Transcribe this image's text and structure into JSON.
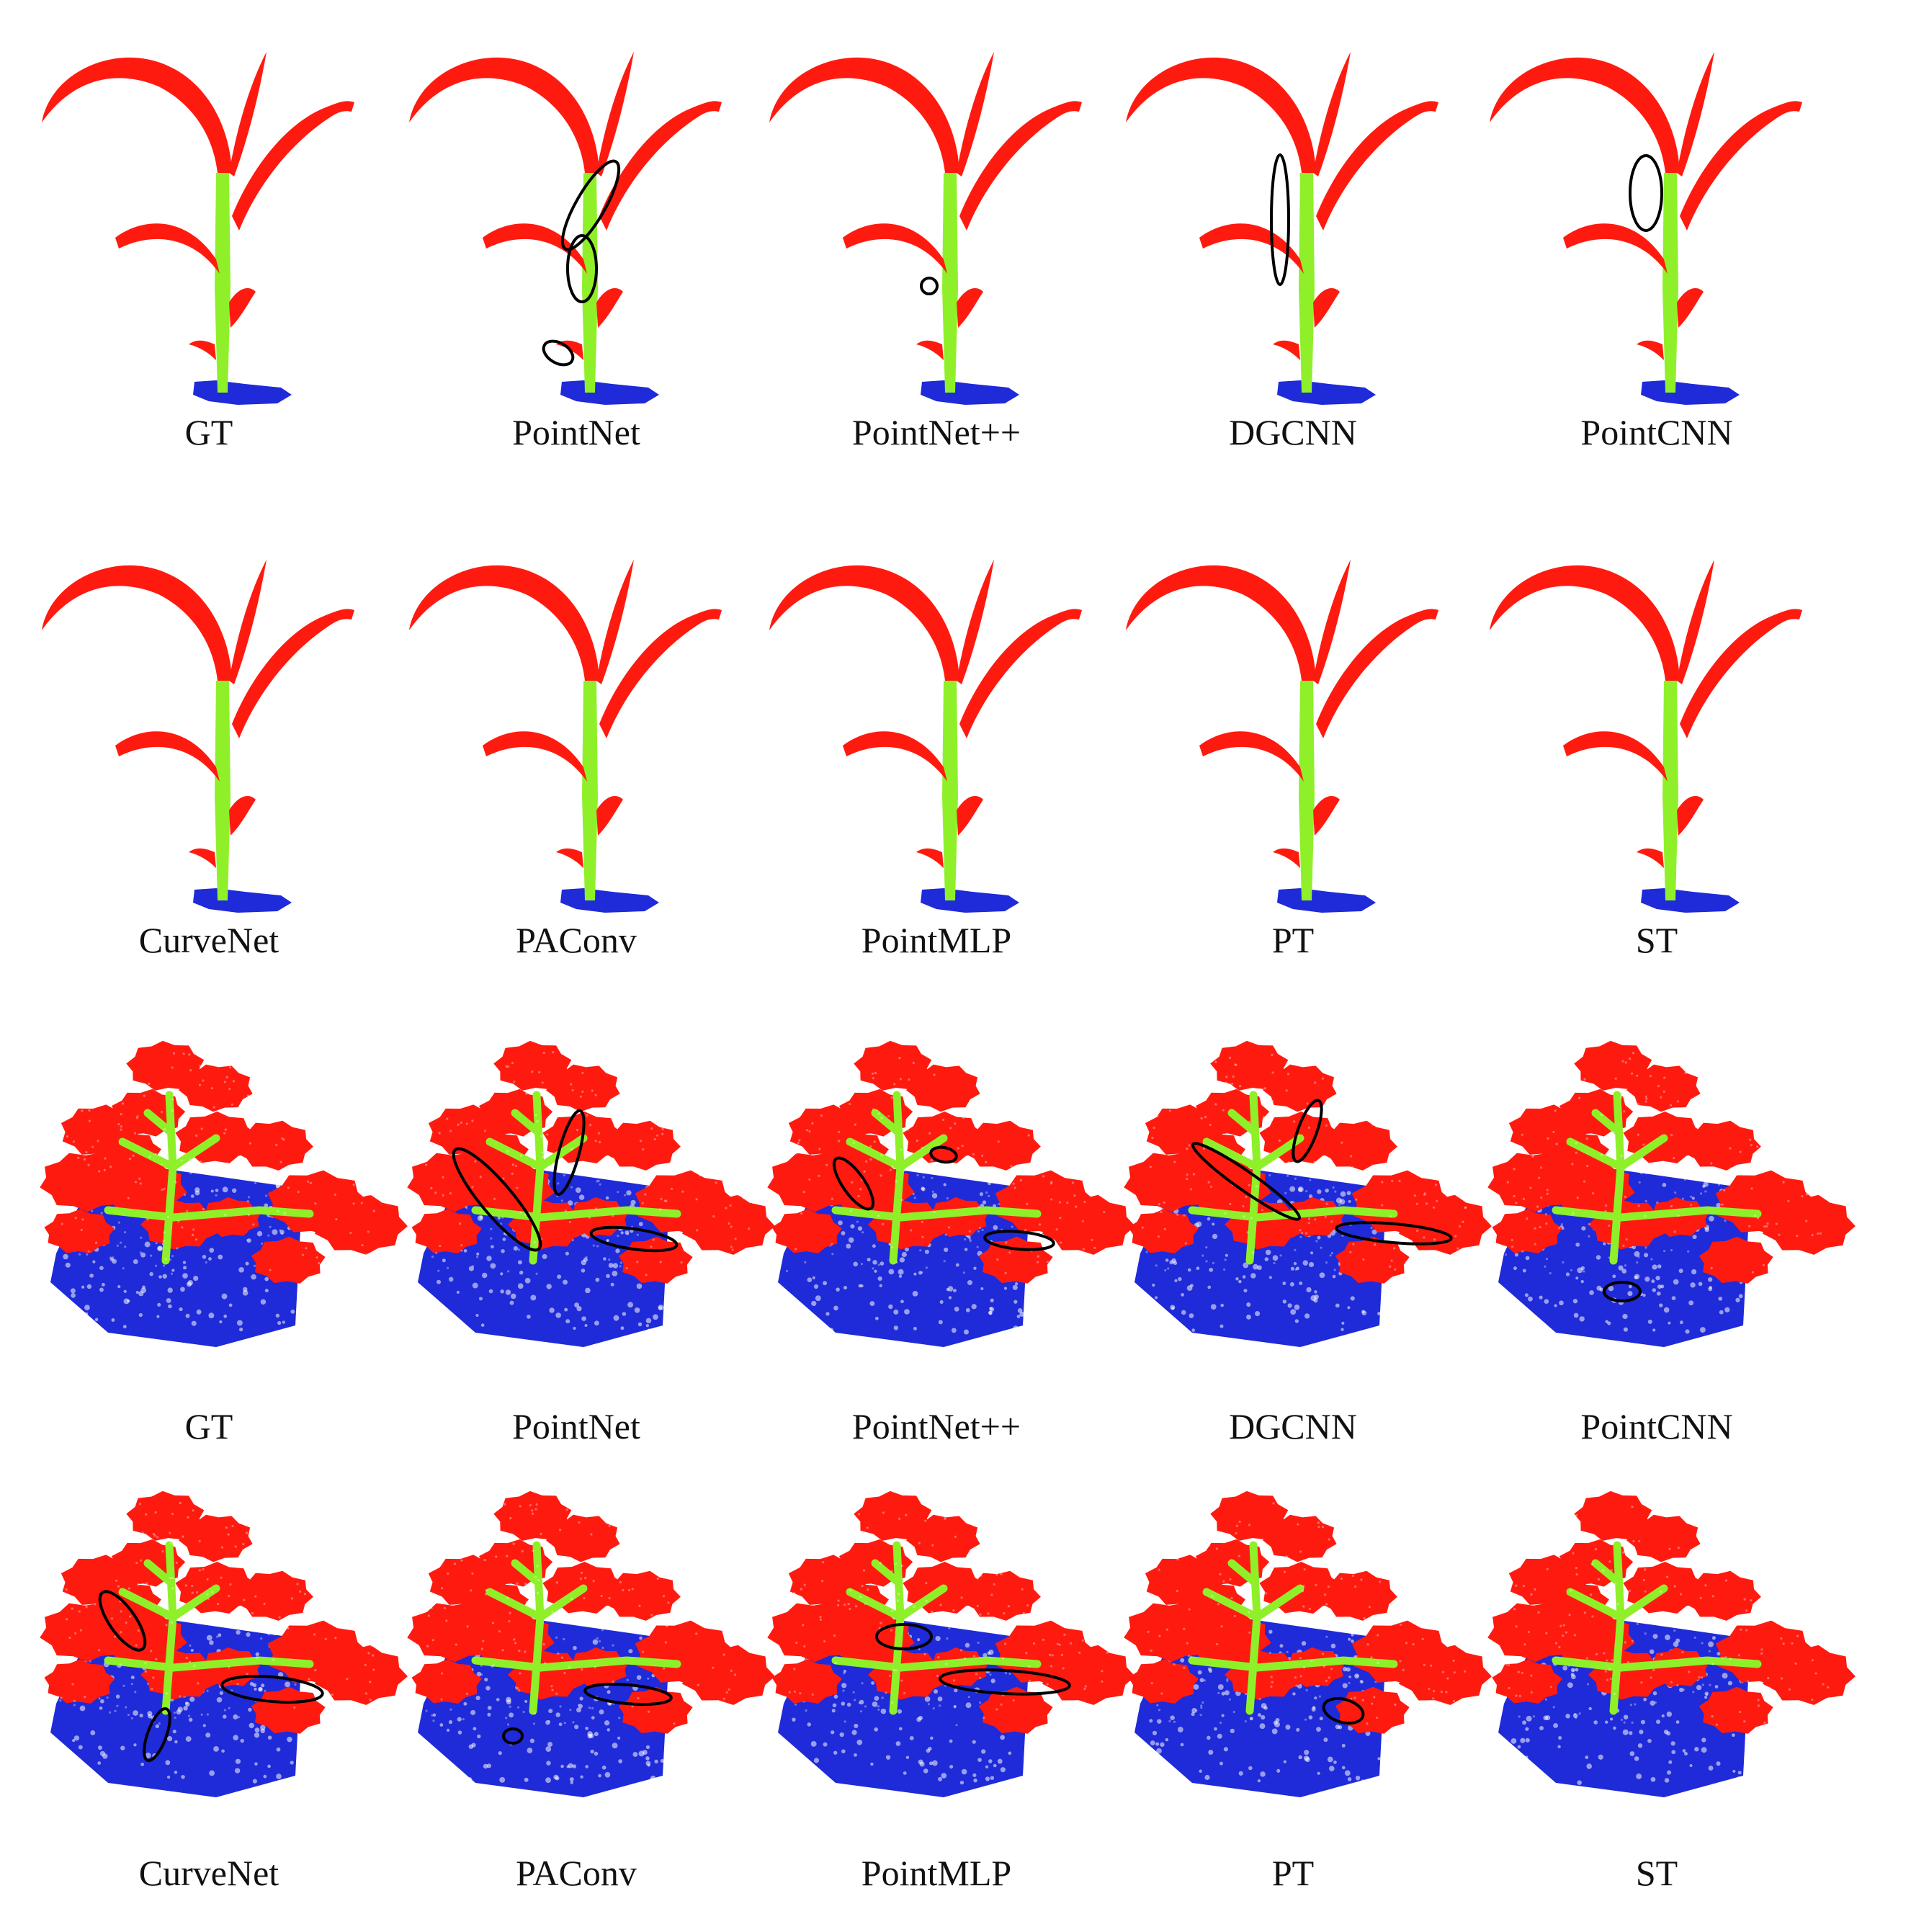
{
  "colors": {
    "leaf": "#ff1a10",
    "stem": "#8ff02a",
    "soil": "#1f2ad8",
    "marker": "#000000"
  },
  "rows": [
    {
      "kind": "maize",
      "labels": [
        "GT",
        "PointNet",
        "PointNet++",
        "DGCNN",
        "PointCNN"
      ]
    },
    {
      "kind": "maize",
      "labels": [
        "CurveNet",
        "PAConv",
        "PointMLP",
        "PT",
        "ST"
      ]
    },
    {
      "kind": "tomato",
      "labels": [
        "GT",
        "PointNet",
        "PointNet++",
        "DGCNN",
        "PointCNN"
      ]
    },
    {
      "kind": "tomato",
      "labels": [
        "CurveNet",
        "PAConv",
        "PointMLP",
        "PT",
        "ST"
      ]
    }
  ]
}
